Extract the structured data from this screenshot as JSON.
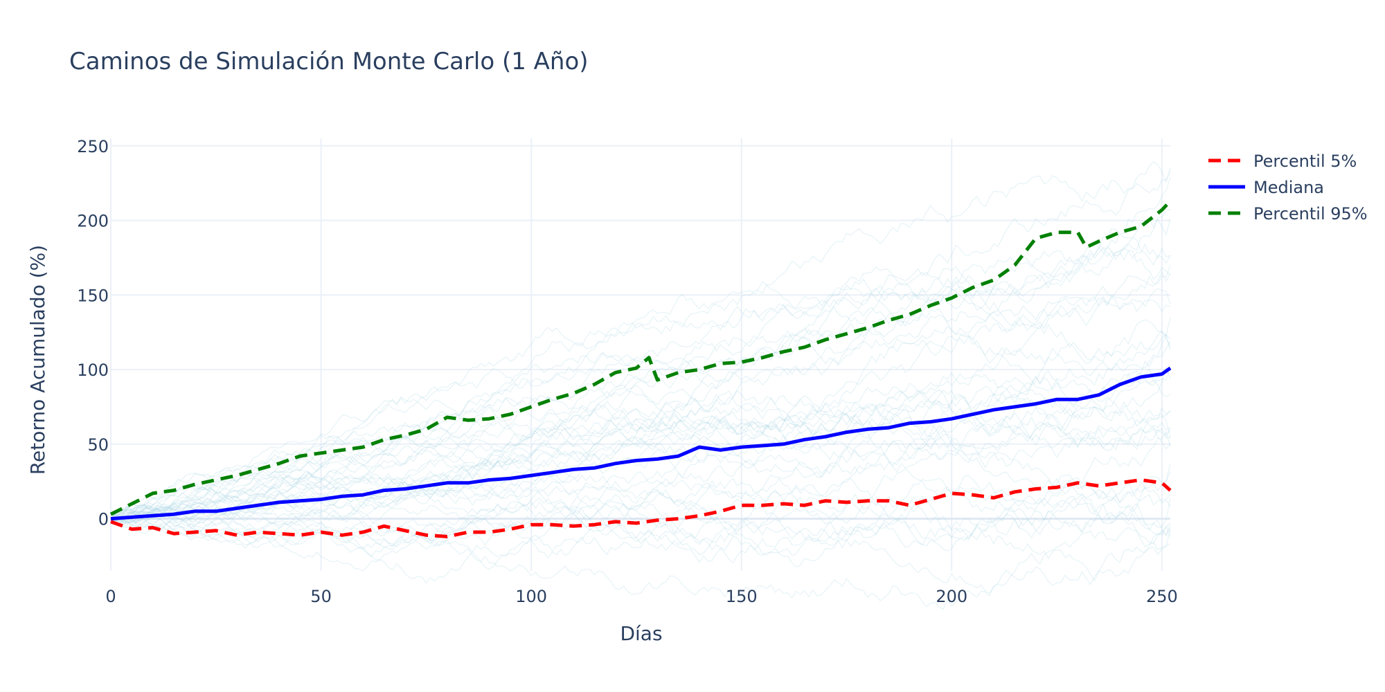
{
  "chart_data": {
    "type": "line",
    "title": "Caminos de Simulación Monte Carlo (1 Año)",
    "xlabel": "Días",
    "ylabel": "Retorno Acumulado (%)",
    "xlim": [
      0,
      252
    ],
    "ylim": [
      -35,
      255
    ],
    "x_ticks": [
      0,
      50,
      100,
      150,
      200,
      250
    ],
    "y_ticks": [
      0,
      50,
      100,
      150,
      200,
      250
    ],
    "grid": true,
    "legend_position": "top-right",
    "background_paths": {
      "count": 40,
      "color": "#add8e6",
      "x_end": 252,
      "end_values_approx": [
        -15,
        0,
        25,
        45,
        60,
        75,
        90,
        110,
        130,
        150,
        175,
        190,
        230
      ]
    },
    "series": [
      {
        "name": "Percentil 5%",
        "color": "#ff0000",
        "dash": "dash",
        "x": [
          0,
          5,
          10,
          15,
          20,
          25,
          30,
          35,
          40,
          45,
          50,
          55,
          60,
          65,
          70,
          75,
          80,
          85,
          90,
          95,
          100,
          105,
          110,
          115,
          120,
          125,
          130,
          135,
          140,
          145,
          150,
          155,
          160,
          165,
          170,
          175,
          180,
          185,
          190,
          195,
          200,
          205,
          210,
          215,
          220,
          225,
          230,
          235,
          240,
          245,
          250,
          252
        ],
        "values": [
          -2,
          -7,
          -6,
          -10,
          -9,
          -8,
          -11,
          -9,
          -10,
          -11,
          -9,
          -11,
          -9,
          -5,
          -8,
          -11,
          -12,
          -9,
          -9,
          -7,
          -4,
          -4,
          -5,
          -4,
          -2,
          -3,
          -1,
          0,
          2,
          5,
          9,
          9,
          10,
          9,
          12,
          11,
          12,
          12,
          9,
          13,
          17,
          16,
          14,
          18,
          20,
          21,
          24,
          22,
          24,
          26,
          24,
          19
        ]
      },
      {
        "name": "Mediana",
        "color": "#0000ff",
        "dash": "solid",
        "x": [
          0,
          5,
          10,
          15,
          20,
          25,
          30,
          35,
          40,
          45,
          50,
          55,
          60,
          65,
          70,
          75,
          80,
          85,
          90,
          95,
          100,
          105,
          110,
          115,
          120,
          125,
          130,
          135,
          140,
          145,
          150,
          155,
          160,
          165,
          170,
          175,
          180,
          185,
          190,
          195,
          200,
          205,
          210,
          215,
          220,
          225,
          230,
          235,
          240,
          245,
          250,
          252
        ],
        "values": [
          0,
          1,
          2,
          3,
          5,
          5,
          7,
          9,
          11,
          12,
          13,
          15,
          16,
          19,
          20,
          22,
          24,
          24,
          26,
          27,
          29,
          31,
          33,
          34,
          37,
          39,
          40,
          42,
          48,
          46,
          48,
          49,
          50,
          53,
          55,
          58,
          60,
          61,
          64,
          65,
          67,
          70,
          73,
          75,
          77,
          80,
          80,
          83,
          90,
          95,
          97,
          101
        ]
      },
      {
        "name": "Percentil 95%",
        "color": "#008000",
        "dash": "dash",
        "x": [
          0,
          5,
          10,
          15,
          20,
          25,
          30,
          35,
          40,
          45,
          50,
          55,
          60,
          65,
          70,
          75,
          80,
          85,
          90,
          95,
          100,
          105,
          110,
          115,
          120,
          125,
          128,
          130,
          135,
          140,
          145,
          150,
          155,
          160,
          165,
          170,
          175,
          180,
          185,
          190,
          195,
          200,
          205,
          210,
          215,
          220,
          225,
          230,
          232,
          235,
          240,
          245,
          250,
          252
        ],
        "values": [
          3,
          10,
          17,
          19,
          23,
          26,
          29,
          33,
          37,
          42,
          44,
          46,
          48,
          53,
          56,
          60,
          68,
          66,
          67,
          70,
          75,
          80,
          84,
          90,
          98,
          101,
          108,
          93,
          98,
          100,
          104,
          105,
          108,
          112,
          115,
          120,
          124,
          128,
          133,
          137,
          143,
          148,
          155,
          160,
          170,
          188,
          192,
          192,
          182,
          186,
          192,
          196,
          207,
          213
        ]
      }
    ]
  }
}
